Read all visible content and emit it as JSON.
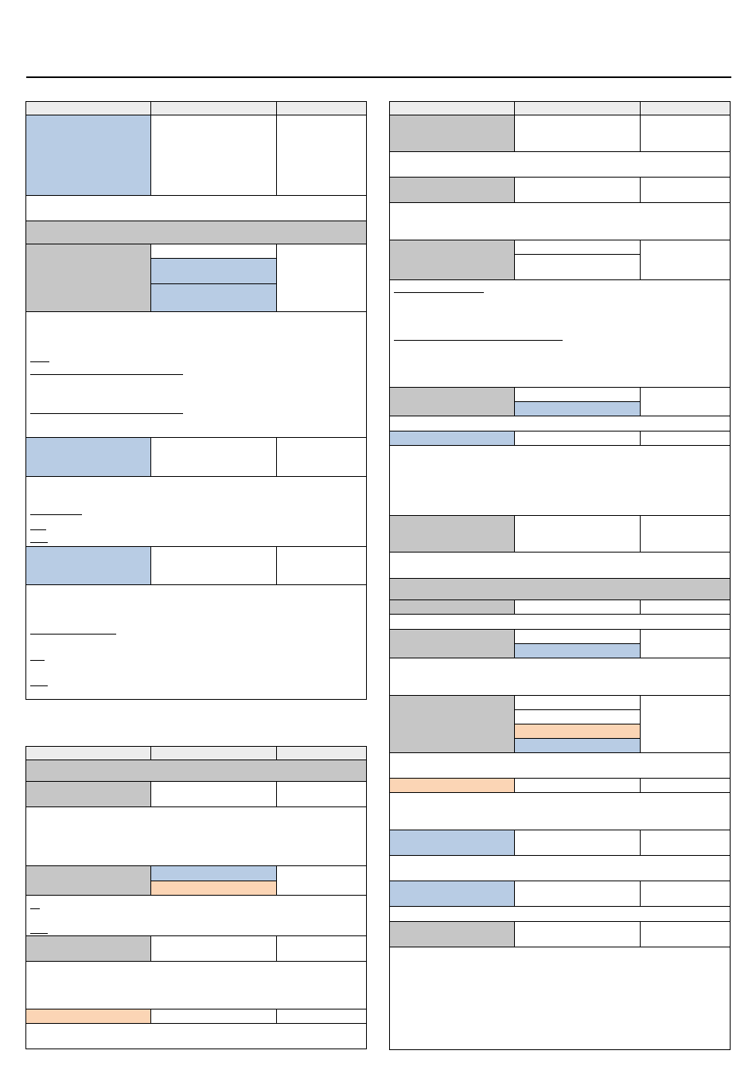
{
  "document": {
    "title": "",
    "sections": []
  },
  "colors": {
    "header_fill": "#ededed",
    "gray_fill": "#c6c6c6",
    "blue_fill": "#b8cce4",
    "orange_fill": "#fbd5b5",
    "border": "#000000"
  }
}
